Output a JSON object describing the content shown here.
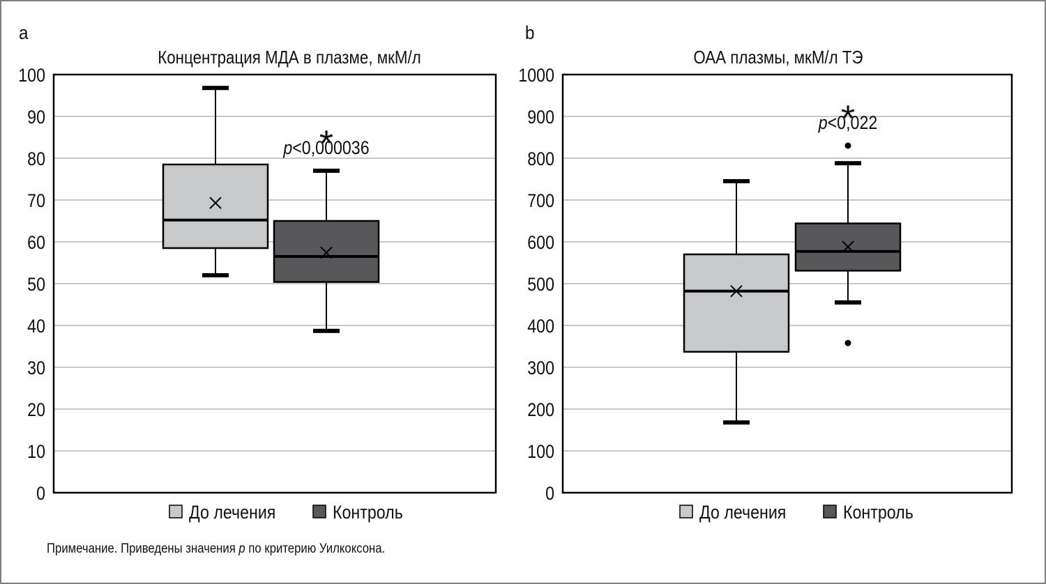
{
  "chart_data": [
    {
      "type": "box",
      "panel_label": "a",
      "title": "Концентрация МДА в плазме, мкМ/л",
      "xlabel": "",
      "ylabel": "",
      "ylim": [
        0,
        100
      ],
      "yticks": [
        0,
        10,
        20,
        30,
        40,
        50,
        60,
        70,
        80,
        90,
        100
      ],
      "grid": true,
      "legend": [
        "До лечения",
        "Контроль"
      ],
      "legend_position": "bottom",
      "series": [
        {
          "name": "До лечения",
          "color": "#c8c9cb",
          "whisker_low": 52,
          "q1": 58.5,
          "median": 65.2,
          "q3": 78.5,
          "whisker_high": 96.8,
          "mean": 69.3,
          "outliers": []
        },
        {
          "name": "Контроль",
          "color": "#58585a",
          "whisker_low": 38.7,
          "q1": 50.4,
          "median": 56.5,
          "q3": 65.0,
          "whisker_high": 77.0,
          "mean": 57.4,
          "outliers": []
        }
      ],
      "annotation": {
        "star": "*",
        "p_prefix": "p",
        "p_text": "<0,000036",
        "series": "Контроль"
      }
    },
    {
      "type": "box",
      "panel_label": "b",
      "title": "ОАА плазмы, мкМ/л ТЭ",
      "xlabel": "",
      "ylabel": "",
      "ylim": [
        0,
        1000
      ],
      "yticks": [
        0,
        100,
        200,
        300,
        400,
        500,
        600,
        700,
        800,
        900,
        1000
      ],
      "grid": true,
      "legend": [
        "До лечения",
        "Контроль"
      ],
      "legend_position": "bottom",
      "series": [
        {
          "name": "До лечения",
          "color": "#c8c9cb",
          "whisker_low": 168,
          "q1": 337,
          "median": 482,
          "q3": 570,
          "whisker_high": 745,
          "mean": 482,
          "outliers": []
        },
        {
          "name": "Контроль",
          "color": "#58585a",
          "whisker_low": 455,
          "q1": 531,
          "median": 577,
          "q3": 644,
          "whisker_high": 788,
          "mean": 588,
          "outliers": [
            830,
            358
          ]
        }
      ],
      "annotation": {
        "star": "*",
        "p_prefix": "p",
        "p_text": "<0,022",
        "series": "Контроль"
      }
    }
  ],
  "footnote": {
    "prefix": "Примечание. Приведены значения ",
    "italic": "p",
    "suffix": " по критерию Уилкоксона."
  }
}
